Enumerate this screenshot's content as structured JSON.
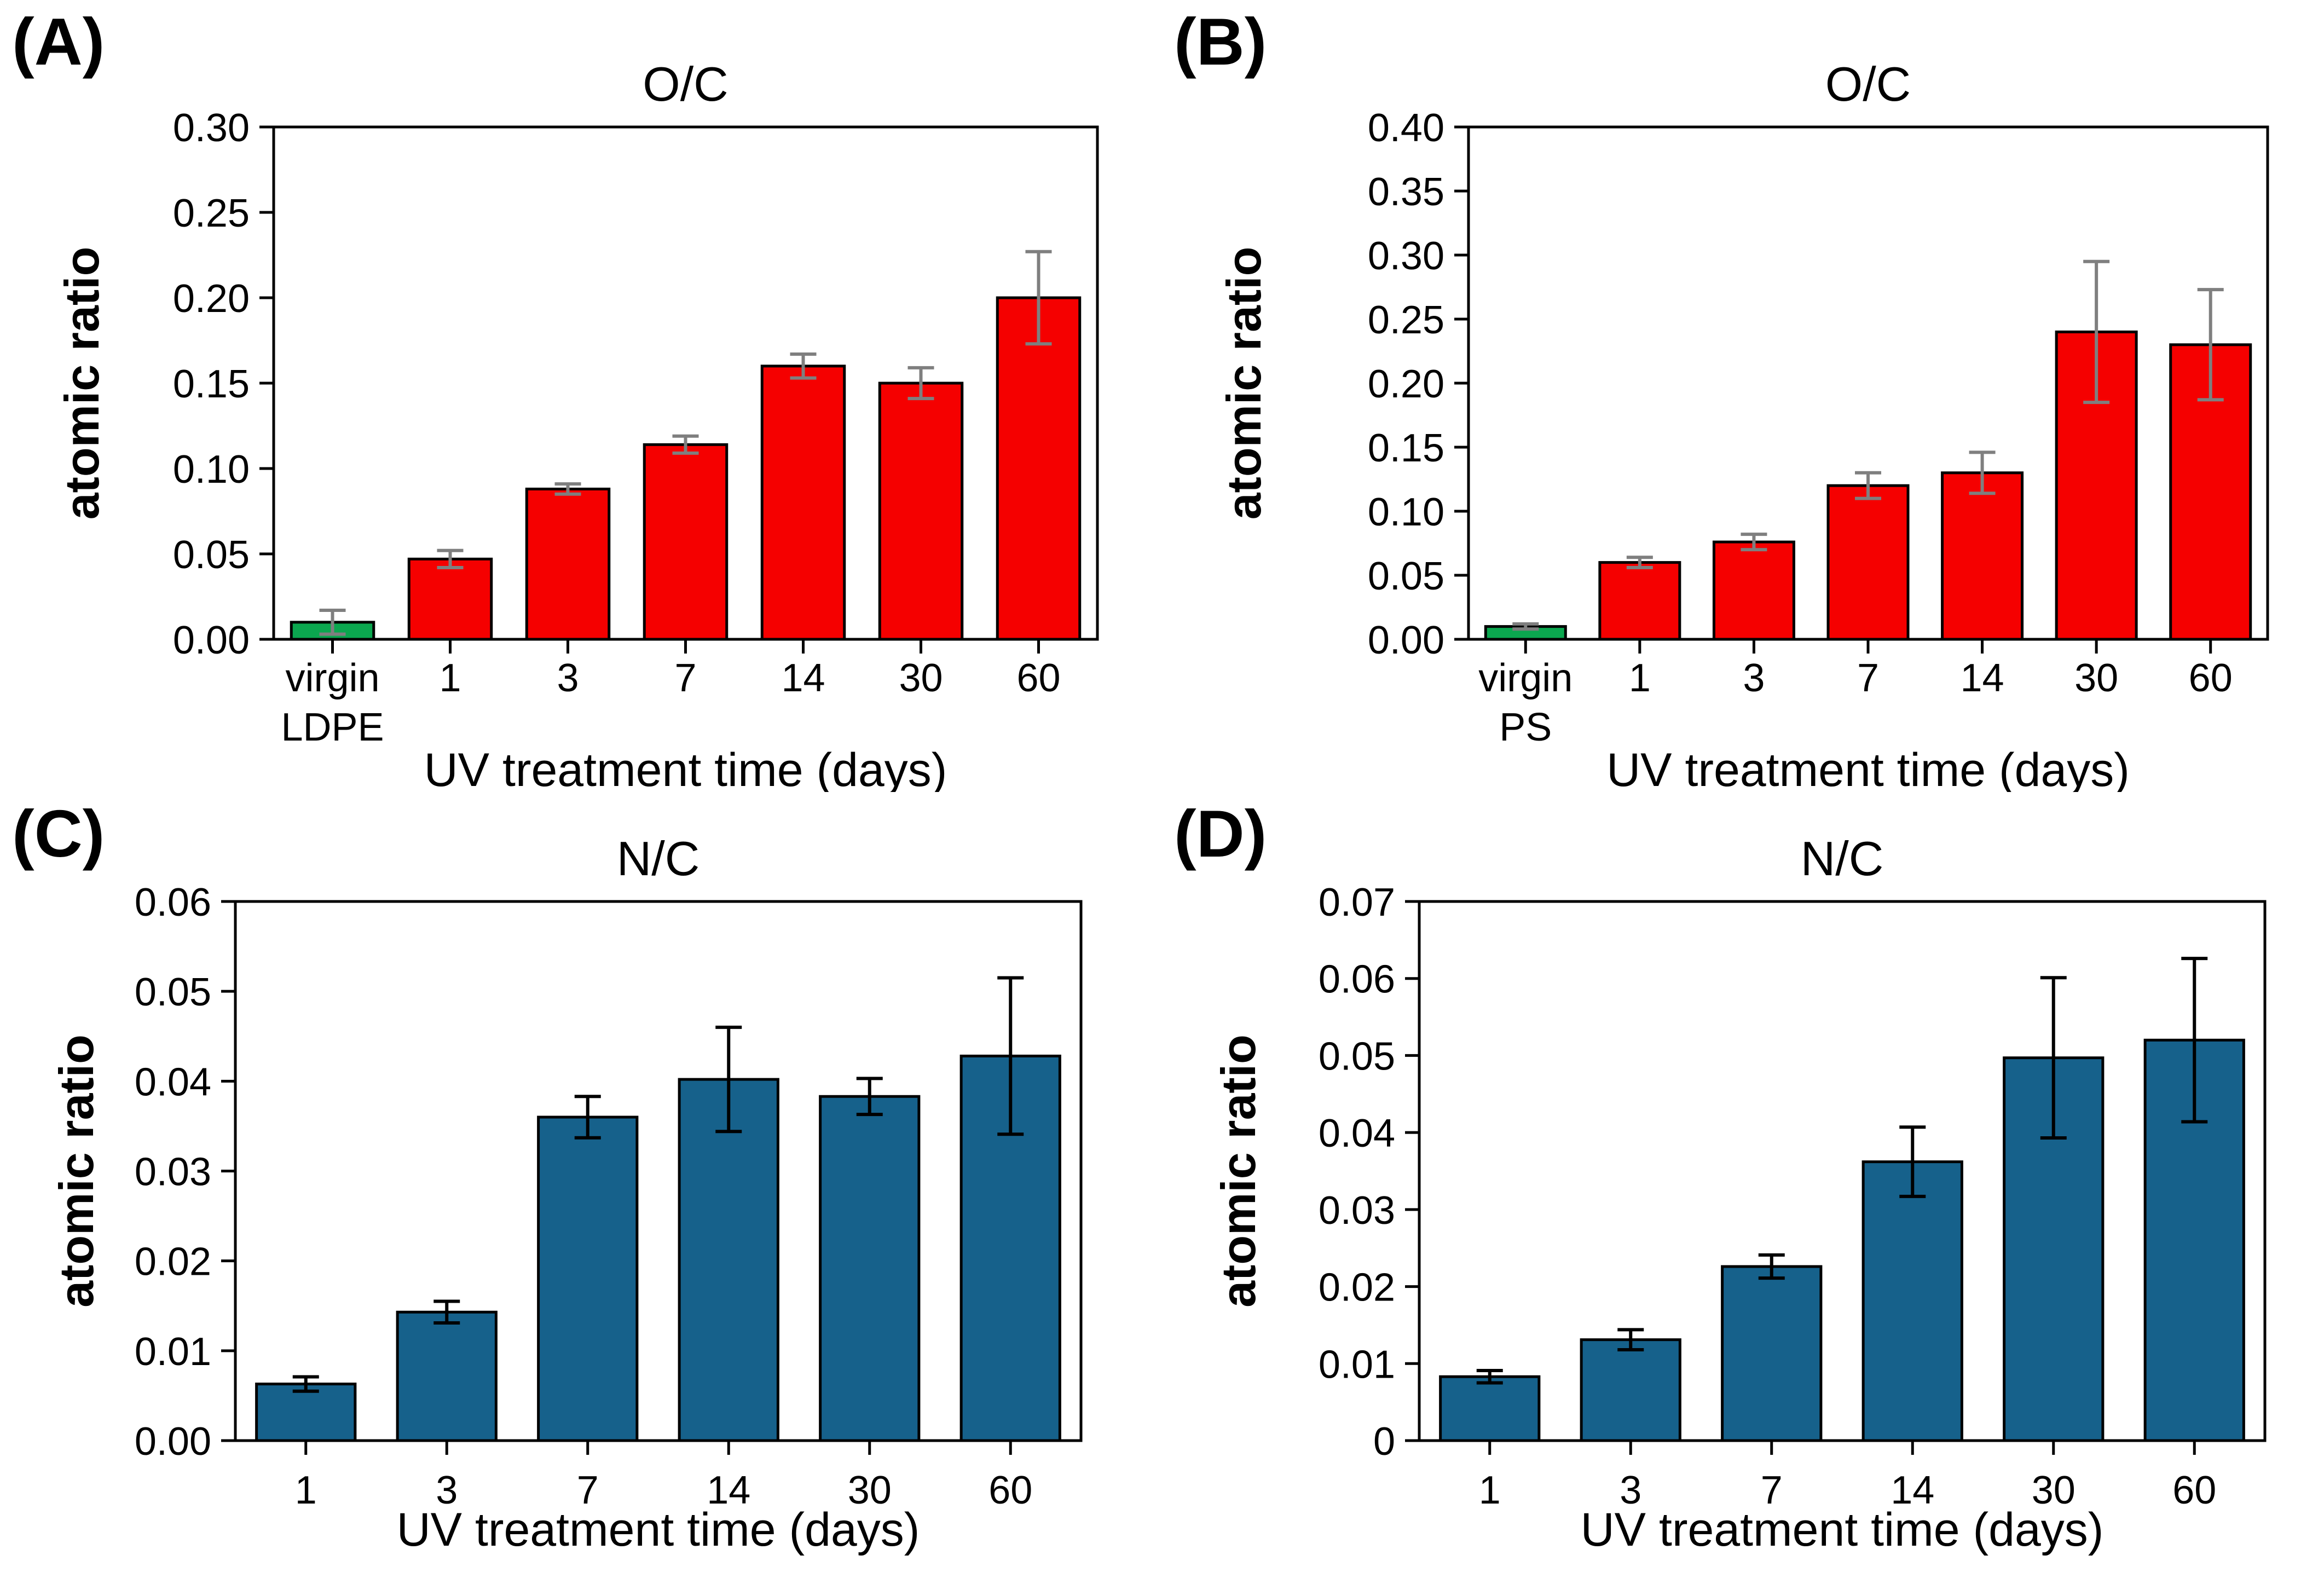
{
  "figure": {
    "background_color": "#ffffff",
    "axis_color": "#000000",
    "panel_labels": [
      "(A)",
      "(B)",
      "(C)",
      "(D)"
    ]
  },
  "chart_data": [
    {
      "panel_label": "(A)",
      "type": "bar",
      "title": "O/C",
      "xlabel": "UV treatment time (days)",
      "ylabel": "atomic ratio",
      "categories": [
        "virgin\nLDPE",
        "1",
        "3",
        "7",
        "14",
        "30",
        "60"
      ],
      "values": [
        0.01,
        0.047,
        0.088,
        0.114,
        0.16,
        0.15,
        0.2
      ],
      "errors": [
        0.007,
        0.005,
        0.003,
        0.005,
        0.007,
        0.009,
        0.027
      ],
      "bar_colors": [
        "#0ba74f",
        "#f50000",
        "#f50000",
        "#f50000",
        "#f50000",
        "#f50000",
        "#f50000"
      ],
      "error_bar_color": "#7f7f7f",
      "ylim": [
        0,
        0.3
      ],
      "ytick_labels": [
        "0.00",
        "0.05",
        "0.10",
        "0.15",
        "0.20",
        "0.25",
        "0.30"
      ],
      "grid": false,
      "legend": null
    },
    {
      "panel_label": "(B)",
      "type": "bar",
      "title": "O/C",
      "xlabel": "UV treatment time (days)",
      "ylabel": "atomic ratio",
      "categories": [
        "virgin\nPS",
        "1",
        "3",
        "7",
        "14",
        "30",
        "60"
      ],
      "values": [
        0.01,
        0.06,
        0.076,
        0.12,
        0.13,
        0.24,
        0.23
      ],
      "errors": [
        0.002,
        0.004,
        0.006,
        0.01,
        0.016,
        0.055,
        0.043
      ],
      "bar_colors": [
        "#0ba74f",
        "#f50000",
        "#f50000",
        "#f50000",
        "#f50000",
        "#f50000",
        "#f50000"
      ],
      "error_bar_color": "#7f7f7f",
      "ylim": [
        0,
        0.4
      ],
      "ytick_labels": [
        "0.00",
        "0.05",
        "0.10",
        "0.15",
        "0.20",
        "0.25",
        "0.30",
        "0.35",
        "0.40"
      ],
      "grid": false,
      "legend": null
    },
    {
      "panel_label": "(C)",
      "type": "bar",
      "title": "N/C",
      "xlabel": "UV treatment time (days)",
      "ylabel": "atomic ratio",
      "categories": [
        "1",
        "3",
        "7",
        "14",
        "30",
        "60"
      ],
      "values": [
        0.0063,
        0.0143,
        0.036,
        0.0402,
        0.0383,
        0.0428
      ],
      "errors": [
        0.0008,
        0.0012,
        0.0023,
        0.0058,
        0.002,
        0.0087
      ],
      "bar_colors": [
        "#16618b",
        "#16618b",
        "#16618b",
        "#16618b",
        "#16618b",
        "#16618b"
      ],
      "error_bar_color": "#000000",
      "ylim": [
        0,
        0.06
      ],
      "ytick_labels": [
        "0.00",
        "0.01",
        "0.02",
        "0.03",
        "0.04",
        "0.05",
        "0.06"
      ],
      "grid": false,
      "legend": null
    },
    {
      "panel_label": "(D)",
      "type": "bar",
      "title": "N/C",
      "xlabel": "UV treatment time (days)",
      "ylabel": "atomic ratio",
      "categories": [
        "1",
        "3",
        "7",
        "14",
        "30",
        "60"
      ],
      "values": [
        0.0083,
        0.0131,
        0.0226,
        0.0362,
        0.0497,
        0.052
      ],
      "errors": [
        0.0008,
        0.0013,
        0.0015,
        0.0045,
        0.0104,
        0.0106
      ],
      "bar_colors": [
        "#16618b",
        "#16618b",
        "#16618b",
        "#16618b",
        "#16618b",
        "#16618b"
      ],
      "error_bar_color": "#000000",
      "ylim": [
        0,
        0.07
      ],
      "ytick_labels": [
        "0",
        "0.01",
        "0.02",
        "0.03",
        "0.04",
        "0.05",
        "0.06",
        "0.07"
      ],
      "grid": false,
      "legend": null
    }
  ]
}
